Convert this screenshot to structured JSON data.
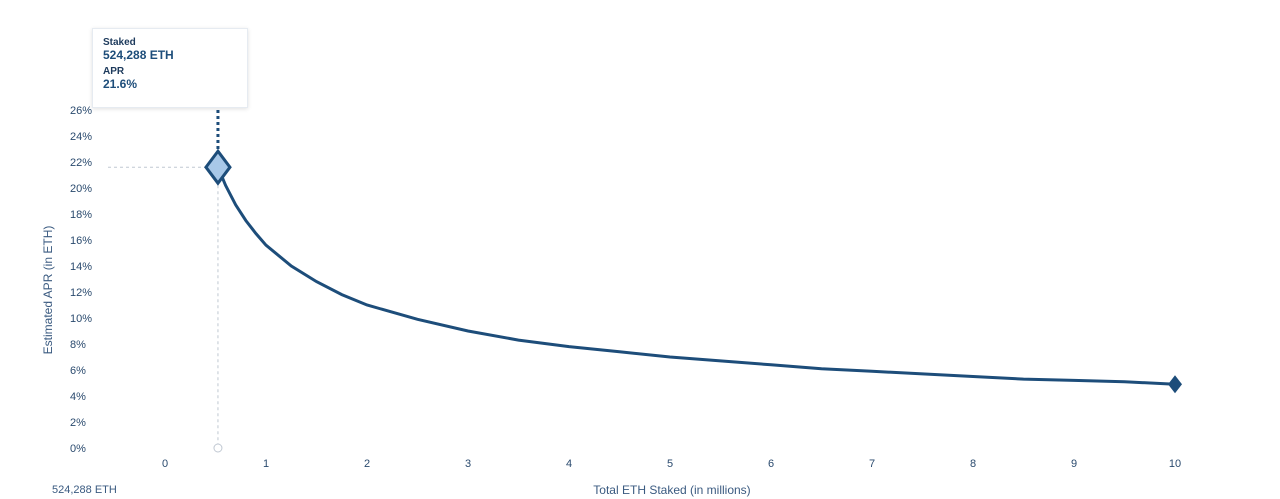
{
  "tooltip": {
    "staked_label": "Staked",
    "staked_value": "524,288 ETH",
    "apr_label": "APR",
    "apr_value": "21.6%"
  },
  "marker_label": "524,288 ETH",
  "chart_data": {
    "type": "line",
    "title": "",
    "xlabel": "Total ETH Staked  (in millions)",
    "ylabel": "Estimated APR (in ETH)",
    "xlim": [
      0,
      10
    ],
    "ylim": [
      0,
      26
    ],
    "x_ticks": [
      {
        "value": 0,
        "label": "0"
      },
      {
        "value": 1,
        "label": "1"
      },
      {
        "value": 2,
        "label": "2"
      },
      {
        "value": 3,
        "label": "3"
      },
      {
        "value": 4,
        "label": "4"
      },
      {
        "value": 5,
        "label": "5"
      },
      {
        "value": 6,
        "label": "6"
      },
      {
        "value": 7,
        "label": "7"
      },
      {
        "value": 8,
        "label": "8"
      },
      {
        "value": 9,
        "label": "9"
      },
      {
        "value": 10,
        "label": "10"
      }
    ],
    "y_ticks": [
      {
        "value": 0,
        "label": "0%"
      },
      {
        "value": 2,
        "label": "2%"
      },
      {
        "value": 4,
        "label": "4%"
      },
      {
        "value": 6,
        "label": "6%"
      },
      {
        "value": 8,
        "label": "8%"
      },
      {
        "value": 10,
        "label": "10%"
      },
      {
        "value": 12,
        "label": "12%"
      },
      {
        "value": 14,
        "label": "14%"
      },
      {
        "value": 16,
        "label": "16%"
      },
      {
        "value": 18,
        "label": "18%"
      },
      {
        "value": 20,
        "label": "20%"
      },
      {
        "value": 22,
        "label": "22%"
      },
      {
        "value": 24,
        "label": "24%"
      },
      {
        "value": 26,
        "label": "26%"
      }
    ],
    "series": [
      {
        "x": [
          0.524288,
          0.6,
          0.7,
          0.8,
          0.9,
          1.0,
          1.25,
          1.5,
          1.75,
          2.0,
          2.5,
          3.0,
          3.5,
          4.0,
          4.5,
          5.0,
          5.5,
          6.0,
          6.5,
          7.0,
          7.5,
          8.0,
          8.5,
          9.0,
          9.5,
          10.0
        ],
        "y": [
          21.6,
          20.2,
          18.7,
          17.5,
          16.5,
          15.6,
          14.0,
          12.8,
          11.8,
          11.0,
          9.9,
          9.0,
          8.3,
          7.8,
          7.4,
          7.0,
          6.7,
          6.4,
          6.1,
          5.9,
          5.7,
          5.5,
          5.3,
          5.2,
          5.1,
          4.9
        ]
      }
    ],
    "highlight": {
      "x": 0.524288,
      "y": 21.6
    },
    "endpoint": {
      "x": 10,
      "y": 4.9
    },
    "colors": {
      "line": "#1d4d7a",
      "marker_fill": "#a8c8e8",
      "grid_guide": "#c0c8d2",
      "tick": "#2a4a6e"
    },
    "grid": false,
    "legend": "none"
  }
}
